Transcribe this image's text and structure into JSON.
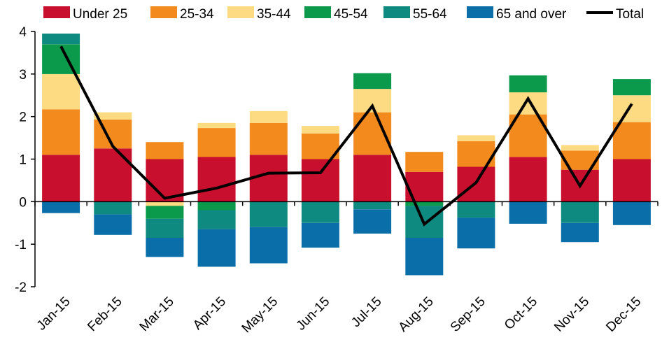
{
  "chart_data": {
    "type": "bar",
    "stacked": true,
    "categories": [
      "Jan-15",
      "Feb-15",
      "Mar-15",
      "Apr-15",
      "May-15",
      "Jun-15",
      "Jul-15",
      "Aug-15",
      "Sep-15",
      "Oct-15",
      "Nov-15",
      "Dec-15"
    ],
    "series": [
      {
        "name": "Under 25",
        "color": "#c8102e",
        "values": [
          1.1,
          1.25,
          1.0,
          1.05,
          1.1,
          1.0,
          1.1,
          0.7,
          0.82,
          1.05,
          0.75,
          1.0
        ]
      },
      {
        "name": "25-34",
        "color": "#f28a1d",
        "values": [
          1.07,
          0.68,
          0.4,
          0.68,
          0.75,
          0.6,
          1.0,
          0.47,
          0.6,
          1.0,
          0.45,
          0.87
        ]
      },
      {
        "name": "35-44",
        "color": "#fddb82",
        "values": [
          0.83,
          0.17,
          -0.1,
          0.12,
          0.28,
          0.18,
          0.55,
          0.0,
          0.14,
          0.52,
          0.13,
          0.63
        ]
      },
      {
        "name": "45-54",
        "color": "#0b9a4b",
        "values": [
          0.7,
          0.0,
          -0.3,
          -0.2,
          0.0,
          0.0,
          0.37,
          -0.1,
          0.0,
          0.4,
          0.0,
          0.38
        ]
      },
      {
        "name": "55-64",
        "color": "#0f8a80",
        "values": [
          0.25,
          -0.3,
          -0.45,
          -0.45,
          -0.6,
          -0.5,
          -0.18,
          -0.75,
          -0.38,
          0.0,
          -0.5,
          0.0
        ]
      },
      {
        "name": "65 and over",
        "color": "#0a6ea8",
        "values": [
          -0.27,
          -0.48,
          -0.45,
          -0.88,
          -0.85,
          -0.58,
          -0.57,
          -0.88,
          -0.72,
          -0.52,
          -0.45,
          -0.55
        ]
      }
    ],
    "line": {
      "name": "Total",
      "color": "#000000",
      "values": [
        3.65,
        1.3,
        0.08,
        0.32,
        0.67,
        0.68,
        2.25,
        -0.53,
        0.45,
        2.42,
        0.37,
        2.3
      ]
    },
    "ylim": [
      -2,
      4
    ],
    "yticks": [
      "-2",
      "-1",
      "0",
      "1",
      "2",
      "3",
      "4"
    ],
    "grid": false,
    "legend_position": "top",
    "title": "",
    "xlabel": "",
    "ylabel": ""
  }
}
